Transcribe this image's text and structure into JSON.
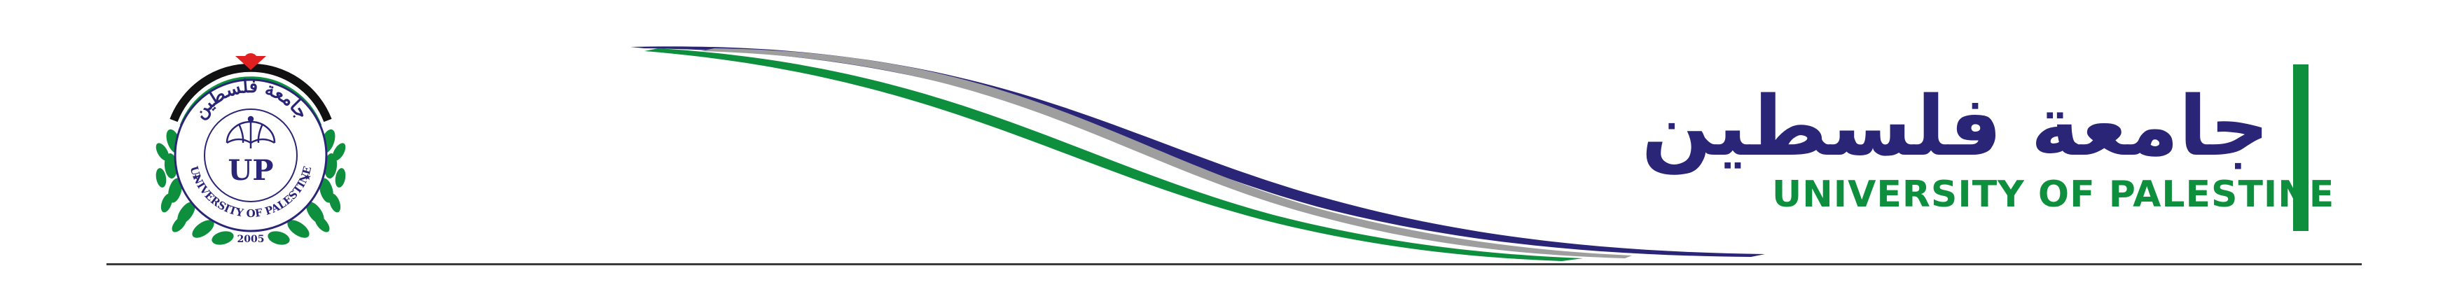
{
  "header": {
    "seal": {
      "arabic_ring_text": "جامعة فلسطين",
      "english_ring_text": "UNIVERSITY OF PALESTINE",
      "monogram": "UP",
      "year": "2005"
    },
    "title_arabic": "جامعة فلسطين",
    "title_english": "UNIVERSITY OF PALESTINE"
  },
  "colors": {
    "navy": "#2a2577",
    "green": "#0e8f3e",
    "gray": "#9e9e9e",
    "red": "#e02020",
    "rule": "#3a3a3a"
  }
}
